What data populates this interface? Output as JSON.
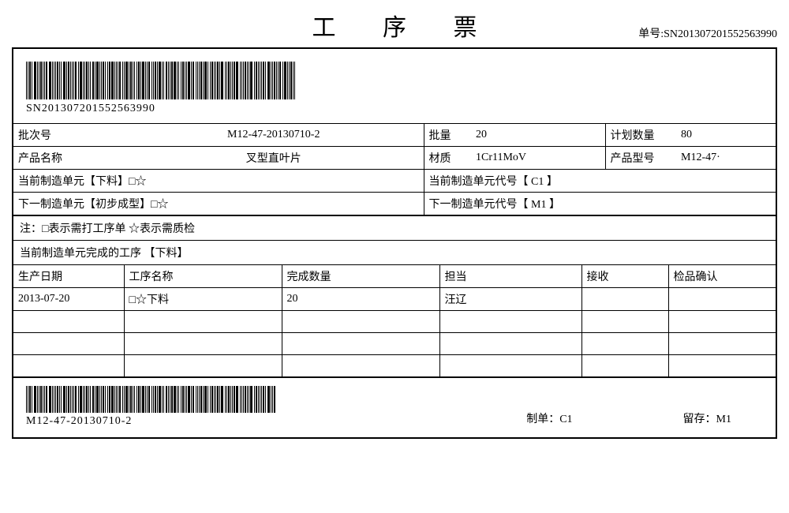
{
  "title": "工 序 票",
  "order_no_label": "单号:",
  "order_no": "SN201307201552563990",
  "barcode_top_label": "SN201307201552563990",
  "info": {
    "batch_no_label": "批次号",
    "batch_no": "M12-47-20130710-2",
    "batch_qty_label": "批量",
    "batch_qty": "20",
    "plan_qty_label": "计划数量",
    "plan_qty": "80",
    "product_name_label": "产品名称",
    "product_name": "叉型直叶片",
    "material_label": "材质",
    "material": "1Cr11MoV",
    "model_label": "产品型号",
    "model": "M12-47·"
  },
  "units": {
    "current_unit": "当前制造单元【下料】□☆",
    "current_unit_code": "当前制造单元代号【 C1 】",
    "next_unit": "下一制造单元【初步成型】□☆",
    "next_unit_code": "下一制造单元代号【 M1 】"
  },
  "note": "注：□表示需打工序单 ☆表示需质检",
  "completed_header": "当前制造单元完成的工序 【下料】",
  "proc_table": {
    "headers": [
      "生产日期",
      "工序名称",
      "完成数量",
      "担当",
      "接收",
      "检品确认"
    ],
    "rows": [
      [
        "2013-07-20",
        "□☆下料",
        "20",
        "汪辽",
        "",
        ""
      ],
      [
        "",
        "",
        "",
        "",
        "",
        ""
      ],
      [
        "",
        "",
        "",
        "",
        "",
        ""
      ],
      [
        "",
        "",
        "",
        "",
        "",
        ""
      ]
    ]
  },
  "footer": {
    "barcode_label": "M12-47-20130710-2",
    "maker_label": "制单：",
    "maker": "C1",
    "keep_label": "留存：",
    "keep": "M1"
  },
  "colors": {
    "border": "#000000",
    "text": "#000000",
    "bg": "#ffffff"
  }
}
